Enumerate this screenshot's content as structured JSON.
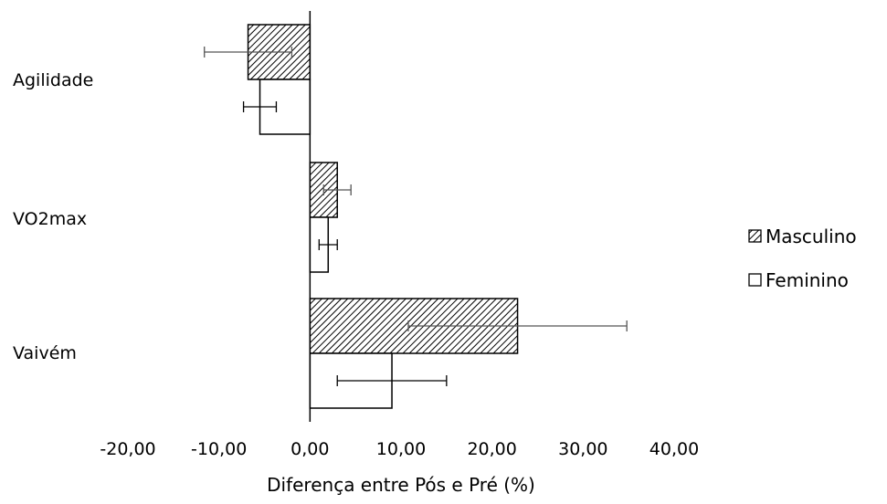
{
  "chart_data": {
    "type": "bar",
    "orientation": "horizontal",
    "categories": [
      "Agilidade",
      "VO2max",
      "Vaivém"
    ],
    "series": [
      {
        "name": "Masculino",
        "values": [
          -6.8,
          3.0,
          22.8
        ],
        "error": [
          4.8,
          1.5,
          12.0
        ],
        "fill": "hatched"
      },
      {
        "name": "Feminino",
        "values": [
          -5.5,
          2.0,
          9.0
        ],
        "error": [
          1.8,
          1.0,
          6.0
        ],
        "fill": "white"
      }
    ],
    "xlim": [
      -20,
      40
    ],
    "x_ticks": [
      -20,
      -10,
      0,
      10,
      20,
      30,
      40
    ],
    "x_tick_labels": [
      "-20,00",
      "-10,00",
      "0,00",
      "10,00",
      "20,00",
      "30,00",
      "40,00"
    ],
    "xlabel": "Diferença entre Pós e Pré (%)",
    "ylabel": "",
    "title": "",
    "legend_position": "right",
    "grid": false,
    "colors": {
      "stroke": "#000000",
      "background": "#ffffff",
      "hatch": "#000000"
    }
  }
}
